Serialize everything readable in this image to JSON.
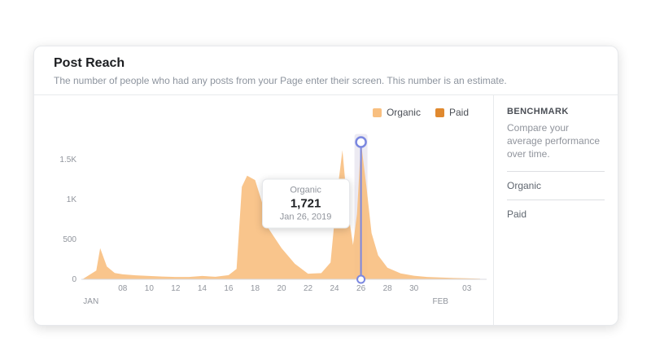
{
  "card": {
    "title": "Post Reach",
    "subtitle": "The number of people who had any posts from your Page enter their screen. This number is an estimate."
  },
  "legend": [
    {
      "label": "Organic",
      "color": "#f8bf80"
    },
    {
      "label": "Paid",
      "color": "#e0892f"
    }
  ],
  "tooltip": {
    "series": "Organic",
    "value": "1,721",
    "date": "Jan 26, 2019"
  },
  "benchmark": {
    "title": "BENCHMARK",
    "description": "Compare your average performance over time.",
    "items": [
      "Organic",
      "Paid"
    ]
  },
  "chart_data": {
    "type": "area",
    "title": "Post Reach",
    "grid": false,
    "legend_position": "top-right",
    "x_axis": {
      "days_span": 30,
      "start": "Jan 05, 2019",
      "end": "Feb 04, 2019",
      "ticks": [
        {
          "day": 3,
          "label": "08"
        },
        {
          "day": 5,
          "label": "10"
        },
        {
          "day": 7,
          "label": "12"
        },
        {
          "day": 9,
          "label": "14"
        },
        {
          "day": 11,
          "label": "16"
        },
        {
          "day": 13,
          "label": "18"
        },
        {
          "day": 15,
          "label": "20"
        },
        {
          "day": 17,
          "label": "22"
        },
        {
          "day": 19,
          "label": "24"
        },
        {
          "day": 21,
          "label": "26"
        },
        {
          "day": 23,
          "label": "28"
        },
        {
          "day": 25,
          "label": "30"
        },
        {
          "day": 29,
          "label": "03"
        }
      ],
      "months": [
        {
          "day": 0.6,
          "label": "JAN"
        },
        {
          "day": 27,
          "label": "FEB"
        }
      ]
    },
    "y_axis": {
      "ticks": [
        0,
        500,
        1000,
        1500
      ],
      "tick_labels": [
        "0",
        "500",
        "1K",
        "1.5K"
      ],
      "ylim": [
        0,
        1900
      ]
    },
    "series": [
      {
        "name": "Organic",
        "color": "#f8bf80",
        "opacity": 0.9,
        "points": [
          [
            0,
            5
          ],
          [
            1,
            110
          ],
          [
            1.3,
            390
          ],
          [
            1.8,
            160
          ],
          [
            2.4,
            80
          ],
          [
            3,
            62
          ],
          [
            4,
            50
          ],
          [
            5,
            42
          ],
          [
            6,
            35
          ],
          [
            7,
            30
          ],
          [
            8,
            30
          ],
          [
            9,
            42
          ],
          [
            10,
            32
          ],
          [
            11,
            52
          ],
          [
            11.6,
            130
          ],
          [
            12,
            1160
          ],
          [
            12.4,
            1300
          ],
          [
            13,
            1245
          ],
          [
            13.5,
            980
          ],
          [
            14,
            640
          ],
          [
            15,
            390
          ],
          [
            16,
            195
          ],
          [
            17,
            70
          ],
          [
            18,
            78
          ],
          [
            18.7,
            210
          ],
          [
            19.2,
            1080
          ],
          [
            19.6,
            1620
          ],
          [
            20,
            880
          ],
          [
            20.4,
            430
          ],
          [
            20.7,
            820
          ],
          [
            21,
            1721
          ],
          [
            21.4,
            1180
          ],
          [
            21.8,
            580
          ],
          [
            22.3,
            300
          ],
          [
            23,
            145
          ],
          [
            24,
            75
          ],
          [
            25,
            45
          ],
          [
            26,
            30
          ],
          [
            27,
            22
          ],
          [
            28,
            16
          ],
          [
            29,
            12
          ],
          [
            30,
            8
          ]
        ]
      },
      {
        "name": "Paid",
        "color": "#e0892f",
        "opacity": 0.9,
        "points": [
          [
            0,
            0
          ],
          [
            30,
            0
          ]
        ]
      }
    ],
    "marker": {
      "day": 21,
      "value": 1721,
      "date": "Jan 26, 2019",
      "series": "Organic",
      "color": "#7a87e0",
      "band_color": "#eceaf2"
    }
  }
}
